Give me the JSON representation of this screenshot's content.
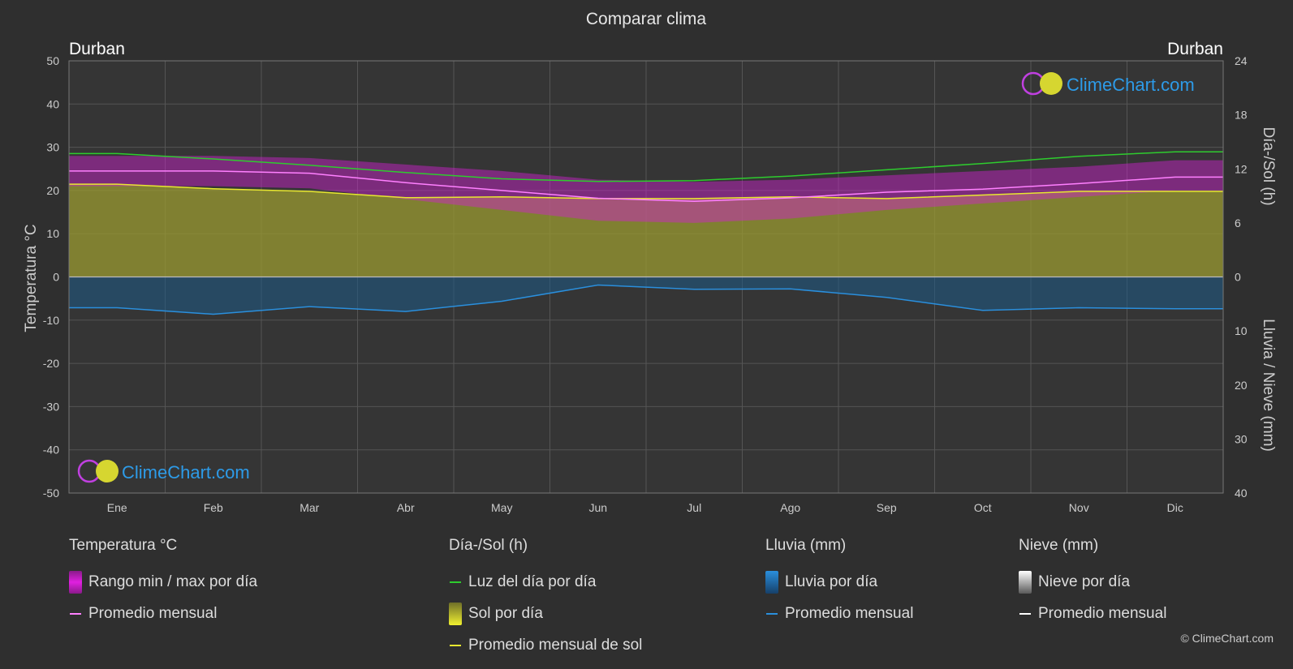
{
  "title": "Comparar clima",
  "location_left": "Durban",
  "location_right": "Durban",
  "logo_text": "ClimeChart.com",
  "copyright": "© ClimeChart.com",
  "axes": {
    "left_label": "Temperatura °C",
    "right_top_label": "Día-/Sol (h)",
    "right_bottom_label": "Lluvia / Nieve (mm)",
    "left_ticks": [
      "50",
      "40",
      "30",
      "20",
      "10",
      "0",
      "-10",
      "-20",
      "-30",
      "-40",
      "-50"
    ],
    "right_top_ticks": [
      "24",
      "18",
      "12",
      "6",
      "0"
    ],
    "right_bottom_ticks": [
      "10",
      "20",
      "30",
      "40"
    ]
  },
  "legend": {
    "temperature": {
      "header": "Temperatura °C",
      "range_label": "Rango min / max por día",
      "avg_label": "Promedio mensual"
    },
    "daysun": {
      "header": "Día-/Sol (h)",
      "daylight_label": "Luz del día por día",
      "sun_label": "Sol por día",
      "sun_avg_label": "Promedio mensual de sol"
    },
    "rain": {
      "header": "Lluvia (mm)",
      "rain_label": "Lluvia por día",
      "avg_label": "Promedio mensual"
    },
    "snow": {
      "header": "Nieve (mm)",
      "snow_label": "Nieve por día",
      "avg_label": "Promedio mensual"
    }
  },
  "colors": {
    "background": "#2f2f2f",
    "temp_range": "#d21ed2",
    "temp_avg": "#ff80ff",
    "daylight": "#2ecc2e",
    "sun_fill": "#9a9a30",
    "sun_avg": "#e8e830",
    "rain_fill": "#1c5a87",
    "rain_avg": "#2a8fdd",
    "snow_avg": "#ffffff"
  },
  "chart_data": {
    "type": "line",
    "months": [
      "Ene",
      "Feb",
      "Mar",
      "Abr",
      "May",
      "Jun",
      "Jul",
      "Ago",
      "Sep",
      "Oct",
      "Nov",
      "Dic"
    ],
    "temp_ylim": [
      -50,
      50
    ],
    "hours_ylim": [
      0,
      24
    ],
    "rain_ylim": [
      0,
      40
    ],
    "series": [
      {
        "name": "Luz del día por día",
        "unit": "h",
        "values": [
          13.7,
          13.1,
          12.4,
          11.6,
          10.9,
          10.6,
          10.7,
          11.2,
          11.9,
          12.6,
          13.4,
          13.9
        ]
      },
      {
        "name": "Promedio mensual de sol",
        "unit": "h",
        "values": [
          10.3,
          9.8,
          9.5,
          8.8,
          8.9,
          8.7,
          8.7,
          8.9,
          8.7,
          9.1,
          9.5,
          9.5
        ]
      },
      {
        "name": "Promedio mensual (temperatura)",
        "unit": "°C",
        "values": [
          24.5,
          24.5,
          24.0,
          21.8,
          20.0,
          18.2,
          17.5,
          18.3,
          19.6,
          20.3,
          21.6,
          23.1
        ]
      },
      {
        "name": "Rango max",
        "unit": "°C",
        "values": [
          28.0,
          28.0,
          27.5,
          26.0,
          24.5,
          22.5,
          22.0,
          22.5,
          23.5,
          24.5,
          25.5,
          27.0
        ]
      },
      {
        "name": "Rango min",
        "unit": "°C",
        "values": [
          21.0,
          21.0,
          20.5,
          18.0,
          15.5,
          13.0,
          12.5,
          13.5,
          15.5,
          17.0,
          18.5,
          20.0
        ]
      },
      {
        "name": "Promedio mensual (lluvia)",
        "unit": "mm",
        "values": [
          5.7,
          6.9,
          5.5,
          6.4,
          4.5,
          1.5,
          2.3,
          2.2,
          3.8,
          6.2,
          5.7,
          5.9
        ]
      }
    ]
  }
}
